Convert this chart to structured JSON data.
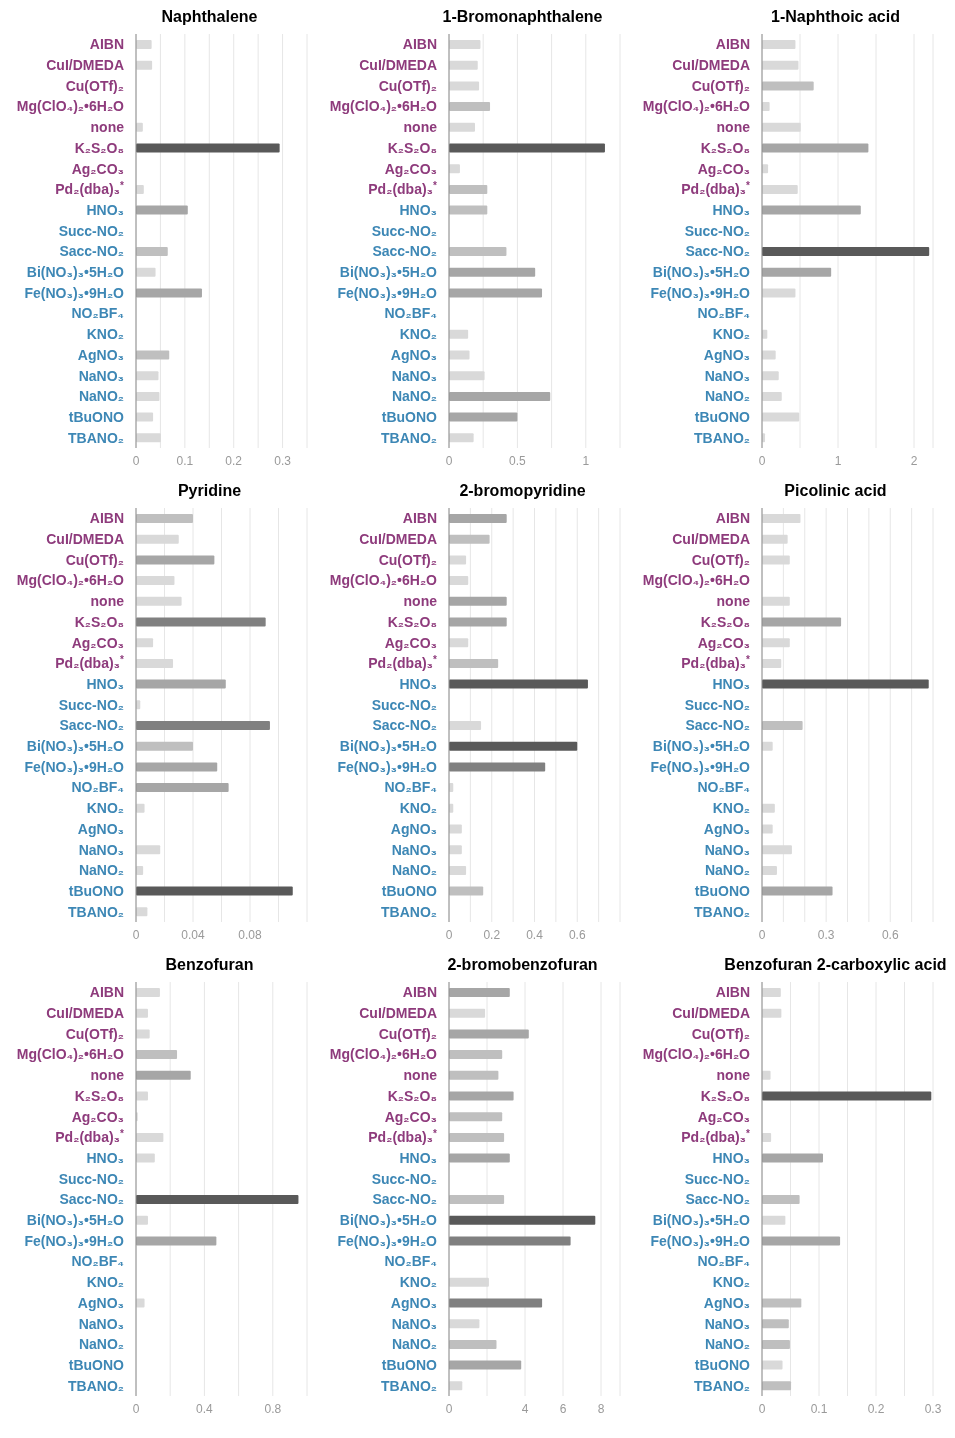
{
  "chart_data": [
    {
      "type": "bar",
      "orientation": "horizontal",
      "title": "Naphthalene",
      "grid": "x",
      "categories": [
        "AIBN",
        "CuI/DMEDA",
        "Cu(OTf)₂",
        "Mg(ClO₄)₂•6H₂O",
        "none",
        "K₂S₂O₈",
        "Ag₂CO₃",
        "Pd₂(dba)₃$^{*}$",
        "HNO₃",
        "Succ-NO₂",
        "Sacc-NO₂",
        "Bi(NO₃)₃•5H₂O",
        "Fe(NO₃)₃•9H₂O",
        "NO₂BF₄",
        "KNO₂",
        "AgNO₃",
        "NaNO₃",
        "NaNO₂",
        "tBuONO",
        "TBANO₂"
      ],
      "values": [
        0.032,
        0.033,
        0,
        null,
        0.014,
        0.294,
        0,
        0.016,
        0.106,
        0,
        0.065,
        0.04,
        0.135,
        0,
        0,
        0.068,
        0.046,
        0.048,
        0.035,
        0.051
      ],
      "colors": [
        "#d9d9d9",
        "#d9d9d9",
        "#d9d9d9",
        "#d9d9d9",
        "#d9d9d9",
        "#595959",
        "#d9d9d9",
        "#d9d9d9",
        "#a6a6a6",
        "#d9d9d9",
        "#bfbfbf",
        "#d9d9d9",
        "#a6a6a6",
        "#d9d9d9",
        "#d9d9d9",
        "#bfbfbf",
        "#d9d9d9",
        "#d9d9d9",
        "#d9d9d9",
        "#d9d9d9"
      ],
      "xlim": [
        0,
        0.35
      ],
      "xticks": [
        0,
        {
          "value": 0.05,
          "label": null
        },
        0.1,
        {
          "value": 0.15,
          "label": null
        },
        0.2,
        {
          "value": 0.25,
          "label": null
        },
        0.3,
        {
          "value": 0.35,
          "label": null
        }
      ]
    },
    {
      "type": "bar",
      "orientation": "horizontal",
      "title": "1-Bromonaphthalene",
      "grid": "x",
      "categories": [
        "AIBN",
        "CuI/DMEDA",
        "Cu(OTf)₂",
        "Mg(ClO₄)₂•6H₂O",
        "none",
        "K₂S₂O₈",
        "Ag₂CO₃",
        "Pd₂(dba)₃$^{*}$",
        "HNO₃",
        "Succ-NO₂",
        "Sacc-NO₂",
        "Bi(NO₃)₃•5H₂O",
        "Fe(NO₃)₃•9H₂O",
        "NO₂BF₄",
        "KNO₂",
        "AgNO₃",
        "NaNO₃",
        "NaNO₂",
        "tBuONO",
        "TBANO₂"
      ],
      "values": [
        0.23,
        0.21,
        0.22,
        0.3,
        0.19,
        1.14,
        0.08,
        0.28,
        0.28,
        0,
        0.42,
        0.63,
        0.68,
        0,
        0.14,
        0.15,
        0.26,
        0.74,
        0.5,
        0.18
      ],
      "colors": [
        "#d9d9d9",
        "#d9d9d9",
        "#d9d9d9",
        "#bfbfbf",
        "#d9d9d9",
        "#595959",
        "#d9d9d9",
        "#bfbfbf",
        "#bfbfbf",
        "#d9d9d9",
        "#bfbfbf",
        "#a6a6a6",
        "#a6a6a6",
        "#d9d9d9",
        "#d9d9d9",
        "#d9d9d9",
        "#d9d9d9",
        "#a6a6a6",
        "#a6a6a6",
        "#d9d9d9"
      ],
      "xlim": [
        0,
        1.25
      ],
      "xticks": [
        0,
        {
          "value": 0.25,
          "label": null
        },
        0.5,
        {
          "value": 0.75,
          "label": null
        },
        1,
        {
          "value": 1.25,
          "label": null
        }
      ]
    },
    {
      "type": "bar",
      "orientation": "horizontal",
      "title": "1-Naphthoic acid",
      "grid": "x",
      "categories": [
        "AIBN",
        "CuI/DMEDA",
        "Cu(OTf)₂",
        "Mg(ClO₄)₂•6H₂O",
        "none",
        "K₂S₂O₈",
        "Ag₂CO₃",
        "Pd₂(dba)₃$^{*}$",
        "HNO₃",
        "Succ-NO₂",
        "Sacc-NO₂",
        "Bi(NO₃)₃•5H₂O",
        "Fe(NO₃)₃•9H₂O",
        "NO₂BF₄",
        "KNO₂",
        "AgNO₃",
        "NaNO₃",
        "NaNO₂",
        "tBuONO",
        "TBANO₂"
      ],
      "values": [
        0.44,
        0.48,
        0.68,
        0.1,
        0.51,
        1.4,
        0.08,
        0.47,
        1.3,
        0,
        2.2,
        0.91,
        0.44,
        0,
        0.07,
        0.18,
        0.22,
        0.26,
        0.49,
        0.04
      ],
      "colors": [
        "#d9d9d9",
        "#d9d9d9",
        "#bfbfbf",
        "#d9d9d9",
        "#d9d9d9",
        "#a6a6a6",
        "#d9d9d9",
        "#d9d9d9",
        "#a6a6a6",
        "#d9d9d9",
        "#595959",
        "#a6a6a6",
        "#d9d9d9",
        "#d9d9d9",
        "#d9d9d9",
        "#d9d9d9",
        "#d9d9d9",
        "#d9d9d9",
        "#d9d9d9",
        "#d9d9d9"
      ],
      "xlim": [
        0,
        2.25
      ],
      "xticks": [
        0,
        {
          "value": 0.5,
          "label": null
        },
        1,
        {
          "value": 1.5,
          "label": null
        },
        2
      ]
    },
    {
      "type": "bar",
      "orientation": "horizontal",
      "title": "Pyridine",
      "grid": "x",
      "categories": [
        "AIBN",
        "CuI/DMEDA",
        "Cu(OTf)₂",
        "Mg(ClO₄)₂•6H₂O",
        "none",
        "K₂S₂O₈",
        "Ag₂CO₃",
        "Pd₂(dba)₃$^{*}$",
        "HNO₃",
        "Succ-NO₂",
        "Sacc-NO₂",
        "Bi(NO₃)₃•5H₂O",
        "Fe(NO₃)₃•9H₂O",
        "NO₂BF₄",
        "KNO₂",
        "AgNO₃",
        "NaNO₃",
        "NaNO₂",
        "tBuONO",
        "TBANO₂"
      ],
      "values": [
        0.04,
        0.03,
        0.055,
        0.027,
        0.032,
        0.091,
        0.012,
        0.026,
        0.063,
        0.003,
        0.094,
        0.04,
        0.057,
        0.065,
        0.006,
        0,
        0.017,
        0.005,
        0.11,
        0.008
      ],
      "colors": [
        "#bfbfbf",
        "#d9d9d9",
        "#a6a6a6",
        "#d9d9d9",
        "#d9d9d9",
        "#808080",
        "#d9d9d9",
        "#d9d9d9",
        "#a6a6a6",
        "#d9d9d9",
        "#808080",
        "#bfbfbf",
        "#a6a6a6",
        "#a6a6a6",
        "#d9d9d9",
        "#d9d9d9",
        "#d9d9d9",
        "#d9d9d9",
        "#595959",
        "#d9d9d9"
      ],
      "xlim": [
        0,
        0.12
      ],
      "xticks": [
        0,
        {
          "value": 0.02,
          "label": null
        },
        0.04,
        {
          "value": 0.06,
          "label": null
        },
        0.08,
        {
          "value": 0.1,
          "label": null
        },
        {
          "value": 0.12,
          "label": null
        }
      ]
    },
    {
      "type": "bar",
      "orientation": "horizontal",
      "title": "2-bromopyridine",
      "grid": "x",
      "categories": [
        "AIBN",
        "CuI/DMEDA",
        "Cu(OTf)₂",
        "Mg(ClO₄)₂•6H₂O",
        "none",
        "K₂S₂O₈",
        "Ag₂CO₃",
        "Pd₂(dba)₃$^{*}$",
        "HNO₃",
        "Succ-NO₂",
        "Sacc-NO₂",
        "Bi(NO₃)₃•5H₂O",
        "Fe(NO₃)₃•9H₂O",
        "NO₂BF₄",
        "KNO₂",
        "AgNO₃",
        "NaNO₃",
        "NaNO₂",
        "tBuONO",
        "TBANO₂"
      ],
      "values": [
        0.27,
        0.19,
        0.08,
        0.09,
        0.27,
        0.27,
        0.09,
        0.23,
        0.65,
        0,
        0.15,
        0.6,
        0.45,
        0.02,
        0.02,
        0.06,
        0.06,
        0.08,
        0.16,
        0
      ],
      "colors": [
        "#a6a6a6",
        "#bfbfbf",
        "#d9d9d9",
        "#d9d9d9",
        "#a6a6a6",
        "#a6a6a6",
        "#d9d9d9",
        "#bfbfbf",
        "#595959",
        "#d9d9d9",
        "#d9d9d9",
        "#595959",
        "#808080",
        "#d9d9d9",
        "#d9d9d9",
        "#d9d9d9",
        "#d9d9d9",
        "#d9d9d9",
        "#bfbfbf",
        "#d9d9d9"
      ],
      "xlim": [
        0,
        0.8
      ],
      "xticks": [
        0,
        {
          "value": 0.1,
          "label": null
        },
        0.2,
        {
          "value": 0.3,
          "label": null
        },
        0.4,
        {
          "value": 0.5,
          "label": null
        },
        0.6,
        {
          "value": 0.7,
          "label": null
        },
        {
          "value": 0.8,
          "label": null
        }
      ]
    },
    {
      "type": "bar",
      "orientation": "horizontal",
      "title": "Picolinic acid",
      "grid": "x",
      "categories": [
        "AIBN",
        "CuI/DMEDA",
        "Cu(OTf)₂",
        "Mg(ClO₄)₂•6H₂O",
        "none",
        "K₂S₂O₈",
        "Ag₂CO₃",
        "Pd₂(dba)₃$^{*}$",
        "HNO₃",
        "Succ-NO₂",
        "Sacc-NO₂",
        "Bi(NO₃)₃•5H₂O",
        "Fe(NO₃)₃•9H₂O",
        "NO₂BF₄",
        "KNO₂",
        "AgNO₃",
        "NaNO₃",
        "NaNO₂",
        "tBuONO",
        "TBANO₂"
      ],
      "values": [
        0.18,
        0.12,
        0.13,
        0,
        0.13,
        0.37,
        0.13,
        0.09,
        0.78,
        null,
        0.19,
        0.05,
        null,
        null,
        0.06,
        0.05,
        0.14,
        0.07,
        0.33,
        0
      ],
      "colors": [
        "#d9d9d9",
        "#d9d9d9",
        "#d9d9d9",
        "#d9d9d9",
        "#d9d9d9",
        "#a6a6a6",
        "#d9d9d9",
        "#d9d9d9",
        "#595959",
        "#d9d9d9",
        "#bfbfbf",
        "#d9d9d9",
        "#d9d9d9",
        "#d9d9d9",
        "#d9d9d9",
        "#d9d9d9",
        "#d9d9d9",
        "#d9d9d9",
        "#a6a6a6",
        "#d9d9d9"
      ],
      "xlim": [
        0,
        0.8
      ],
      "xticks": [
        0,
        {
          "value": 0.1,
          "label": null
        },
        {
          "value": 0.2,
          "label": null
        },
        0.3,
        {
          "value": 0.4,
          "label": null
        },
        {
          "value": 0.5,
          "label": null
        },
        0.6,
        {
          "value": 0.7,
          "label": null
        }
      ]
    },
    {
      "type": "bar",
      "orientation": "horizontal",
      "title": "Benzofuran",
      "grid": "x",
      "categories": [
        "AIBN",
        "CuI/DMEDA",
        "Cu(OTf)₂",
        "Mg(ClO₄)₂•6H₂O",
        "none",
        "K₂S₂O₈",
        "Ag₂CO₃",
        "Pd₂(dba)₃$^{*}$",
        "HNO₃",
        "Succ-NO₂",
        "Sacc-NO₂",
        "Bi(NO₃)₃•5H₂O",
        "Fe(NO₃)₃•9H₂O",
        "NO₂BF₄",
        "KNO₂",
        "AgNO₃",
        "NaNO₃",
        "NaNO₂",
        "tBuONO",
        "TBANO₂"
      ],
      "values": [
        0.14,
        0.07,
        0.08,
        0.24,
        0.32,
        0.07,
        0.01,
        0.16,
        0.11,
        0,
        0.95,
        0.07,
        0.47,
        0,
        0,
        0.05,
        0,
        0,
        0,
        0
      ],
      "colors": [
        "#d9d9d9",
        "#d9d9d9",
        "#d9d9d9",
        "#bfbfbf",
        "#a6a6a6",
        "#d9d9d9",
        "#d9d9d9",
        "#d9d9d9",
        "#d9d9d9",
        "#d9d9d9",
        "#595959",
        "#d9d9d9",
        "#a6a6a6",
        "#d9d9d9",
        "#d9d9d9",
        "#d9d9d9",
        "#d9d9d9",
        "#d9d9d9",
        "#d9d9d9",
        "#d9d9d9"
      ],
      "xlim": [
        0,
        1
      ],
      "xticks": [
        0,
        {
          "value": 0.2,
          "label": null
        },
        0.4,
        {
          "value": 0.6,
          "label": null
        },
        0.8,
        {
          "value": 1,
          "label": null
        }
      ]
    },
    {
      "type": "bar",
      "orientation": "horizontal",
      "title": "2-bromobenzofuran",
      "grid": "x",
      "categories": [
        "AIBN",
        "CuI/DMEDA",
        "Cu(OTf)₂",
        "Mg(ClO₄)₂•6H₂O",
        "none",
        "K₂S₂O₈",
        "Ag₂CO₃",
        "Pd₂(dba)₃$^{*}$",
        "HNO₃",
        "Succ-NO₂",
        "Sacc-NO₂",
        "Bi(NO₃)₃•5H₂O",
        "Fe(NO₃)₃•9H₂O",
        "NO₂BF₄",
        "KNO₂",
        "AgNO₃",
        "NaNO₃",
        "NaNO₂",
        "tBuONO",
        "TBANO₂"
      ],
      "values": [
        3.2,
        1.9,
        4.2,
        2.8,
        2.6,
        3.4,
        2.8,
        2.9,
        3.2,
        0,
        2.9,
        7.7,
        6.4,
        0,
        2.1,
        4.9,
        1.6,
        2.5,
        3.8,
        0.7
      ],
      "colors": [
        "#a6a6a6",
        "#d9d9d9",
        "#a6a6a6",
        "#bfbfbf",
        "#bfbfbf",
        "#a6a6a6",
        "#bfbfbf",
        "#bfbfbf",
        "#a6a6a6",
        "#d9d9d9",
        "#bfbfbf",
        "#595959",
        "#808080",
        "#d9d9d9",
        "#d9d9d9",
        "#808080",
        "#d9d9d9",
        "#bfbfbf",
        "#a6a6a6",
        "#d9d9d9"
      ],
      "xlim": [
        0,
        9
      ],
      "xticks": [
        0,
        {
          "value": 2,
          "label": null
        },
        4,
        6,
        8
      ]
    },
    {
      "type": "bar",
      "orientation": "horizontal",
      "title": "Benzofuran 2-carboxylic acid",
      "grid": "x",
      "categories": [
        "AIBN",
        "CuI/DMEDA",
        "Cu(OTf)₂",
        "Mg(ClO₄)₂•6H₂O",
        "none",
        "K₂S₂O₈",
        "Ag₂CO₃",
        "Pd₂(dba)₃$^{*}$",
        "HNO₃",
        "Succ-NO₂",
        "Sacc-NO₂",
        "Bi(NO₃)₃•5H₂O",
        "Fe(NO₃)₃•9H₂O",
        "NO₂BF₄",
        "KNO₂",
        "AgNO₃",
        "NaNO₃",
        "NaNO₂",
        "tBuONO",
        "TBANO₂"
      ],
      "values": [
        0.033,
        0.034,
        0,
        0,
        0.015,
        0.297,
        0,
        0.016,
        0.107,
        0,
        0.066,
        0.041,
        0.137,
        0,
        0,
        0.069,
        0.047,
        0.049,
        0.036,
        0.051
      ],
      "colors": [
        "#d9d9d9",
        "#d9d9d9",
        "#d9d9d9",
        "#d9d9d9",
        "#d9d9d9",
        "#595959",
        "#d9d9d9",
        "#d9d9d9",
        "#a6a6a6",
        "#d9d9d9",
        "#bfbfbf",
        "#d9d9d9",
        "#a6a6a6",
        "#d9d9d9",
        "#d9d9d9",
        "#bfbfbf",
        "#bfbfbf",
        "#bfbfbf",
        "#d9d9d9",
        "#bfbfbf"
      ],
      "xlim": [
        0,
        0.3
      ],
      "xticks": [
        0,
        {
          "value": 0.05,
          "label": null
        },
        0.1,
        {
          "value": 0.15,
          "label": null
        },
        0.2,
        {
          "value": 0.25,
          "label": null
        },
        0.3
      ]
    }
  ]
}
